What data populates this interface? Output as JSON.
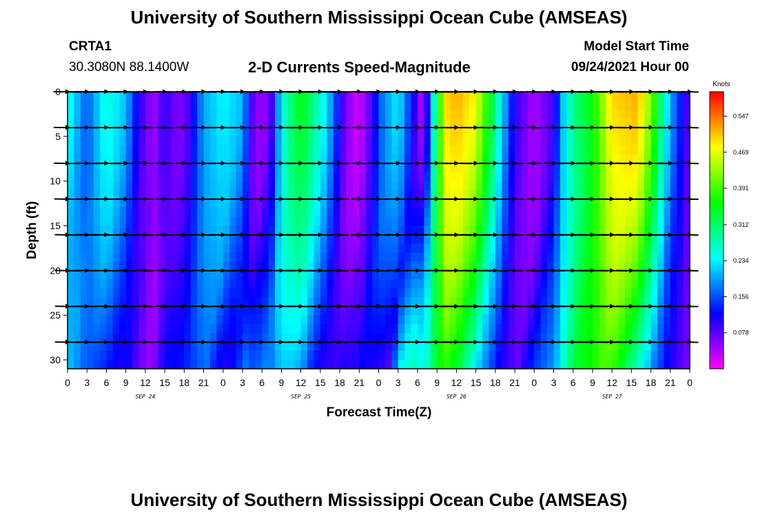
{
  "header": {
    "title_top": "University of Southern Mississippi Ocean Cube (AMSEAS)",
    "title_bottom": "University of Southern Mississippi Ocean Cube (AMSEAS)",
    "station_id": "CRTA1",
    "station_coords": "30.3080N  88.1400W",
    "plot_title": "2-D Currents Speed-Magnitude",
    "model_start_label": "Model Start Time",
    "model_start_value": "09/24/2021 Hour 00"
  },
  "colors": {
    "scale": [
      "#ff00ff",
      "#8000ff",
      "#0000ff",
      "#0080ff",
      "#00ffff",
      "#00ff80",
      "#00ff00",
      "#80ff00",
      "#ffff00",
      "#ff8000",
      "#ff0000"
    ]
  },
  "chart_data": {
    "type": "heatmap",
    "title": "2-D Currents Speed-Magnitude",
    "xlabel": "Forecast Time(Z)",
    "ylabel": "Depth (ft)",
    "x_tick_labels": [
      "0",
      "3",
      "6",
      "9",
      "12",
      "15",
      "18",
      "21",
      "0",
      "3",
      "6",
      "9",
      "12",
      "15",
      "18",
      "21",
      "0",
      "3",
      "6",
      "9",
      "12",
      "15",
      "18",
      "21",
      "0",
      "3",
      "6",
      "9",
      "12",
      "15",
      "18",
      "21",
      "0"
    ],
    "x_range_hours": [
      0,
      96
    ],
    "date_labels": [
      {
        "label": "SEP 24",
        "hour": 12
      },
      {
        "label": "SEP 25",
        "hour": 36
      },
      {
        "label": "SEP 26",
        "hour": 60
      },
      {
        "label": "SEP 27",
        "hour": 84
      }
    ],
    "y_ticks": [
      0,
      5,
      10,
      15,
      20,
      25,
      30
    ],
    "ylim": [
      0,
      31
    ],
    "colorbar": {
      "unit": "Knots",
      "min": 0,
      "max": 0.6,
      "tick_labels": [
        "0.547",
        "0.469",
        "0.391",
        "0.312",
        "0.234",
        "0.156",
        "0.078"
      ],
      "tick_values": [
        0.547,
        0.469,
        0.391,
        0.312,
        0.234,
        0.156,
        0.078
      ]
    },
    "speed_profile_hours": [
      0,
      3,
      6,
      9,
      10.5,
      12,
      13.5,
      15,
      16.5,
      18,
      21,
      24,
      27,
      28.5,
      30,
      31.5,
      33,
      36,
      40,
      43,
      45,
      47,
      48,
      51,
      54,
      55,
      57,
      58.5,
      60,
      63,
      66,
      69,
      72,
      75,
      76.5,
      78,
      81,
      84,
      88,
      90,
      93,
      96
    ],
    "speed_profile_knots": [
      0.26,
      0.16,
      0.26,
      0.21,
      0.13,
      0.07,
      0.05,
      0.1,
      0.07,
      0.06,
      0.2,
      0.24,
      0.21,
      0.08,
      0.04,
      0.09,
      0.25,
      0.36,
      0.23,
      0.06,
      0.02,
      0.09,
      0.16,
      0.24,
      0.08,
      0.02,
      0.35,
      0.5,
      0.52,
      0.48,
      0.3,
      0.1,
      0.04,
      0.09,
      0.22,
      0.3,
      0.36,
      0.5,
      0.52,
      0.42,
      0.2,
      0.07
    ],
    "arrow_depths_ft": [
      0,
      4,
      8,
      12,
      16,
      20,
      24,
      28
    ],
    "arrow_spacing_hours": 3
  }
}
